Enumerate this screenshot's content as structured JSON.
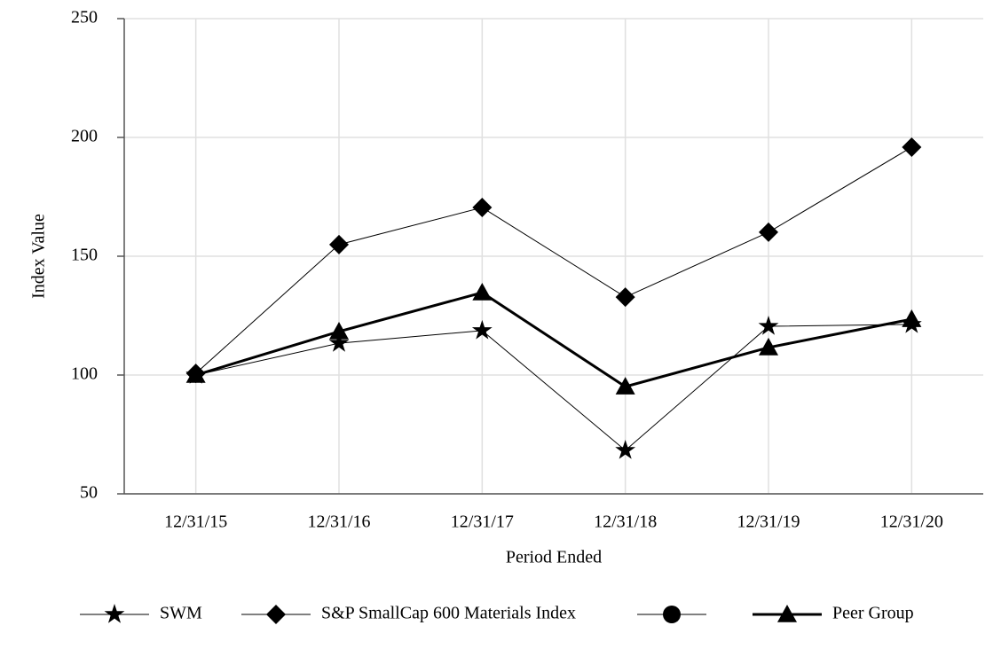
{
  "chart_data": {
    "type": "line",
    "x_label": "Period Ended",
    "y_label": "Index Value",
    "categories": [
      "12/31/15",
      "12/31/16",
      "12/31/17",
      "12/31/18",
      "12/31/19",
      "12/31/20"
    ],
    "series": [
      {
        "name": "SWM",
        "color": "#000000",
        "marker": "star",
        "width": 1,
        "values": [
          100,
          113.4,
          118.7,
          68.3,
          120.5,
          121.3
        ]
      },
      {
        "name": "S&P SmallCap 600 Materials Index",
        "color": "#000000",
        "marker": "diamond",
        "width": 1,
        "values": [
          100.7,
          154.9,
          170.5,
          132.8,
          160.1,
          195.9
        ]
      },
      {
        "color": "#000000",
        "marker": "circle",
        "width": 1,
        "values": [
          null,
          null,
          null,
          null,
          null,
          null
        ]
      },
      {
        "name": "Peer Group",
        "color": "#000000",
        "marker": "triangle",
        "width": 3,
        "values": [
          100,
          118.3,
          134.7,
          95.1,
          111.6,
          123.5
        ]
      }
    ],
    "ylim": [
      50,
      250
    ],
    "yticks": [
      50,
      100,
      150,
      200,
      250
    ],
    "grid": true
  }
}
